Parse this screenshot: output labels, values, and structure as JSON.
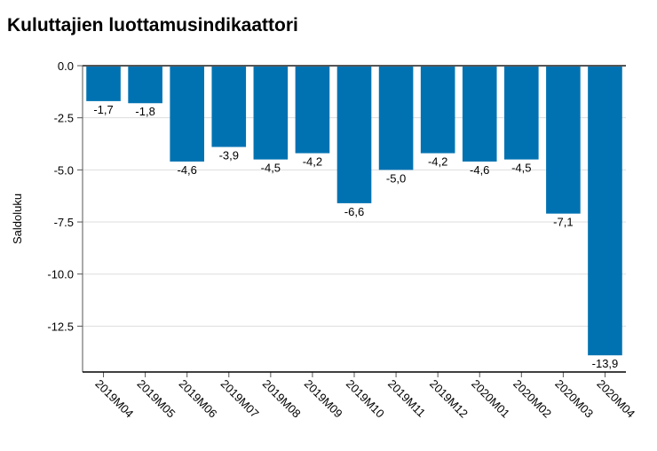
{
  "chart_data": {
    "type": "bar",
    "title": "Kuluttajien luottamusindikaattori",
    "ylabel": "Saldoluku",
    "xlabel": "",
    "categories": [
      "2019M04",
      "2019M05",
      "2019M06",
      "2019M07",
      "2019M08",
      "2019M09",
      "2019M10",
      "2019M11",
      "2019M12",
      "2020M01",
      "2020M02",
      "2020M03",
      "2020M04"
    ],
    "values": [
      -1.7,
      -1.8,
      -4.6,
      -3.9,
      -4.5,
      -4.2,
      -6.6,
      -5.0,
      -4.2,
      -4.6,
      -4.5,
      -7.1,
      -13.9
    ],
    "value_labels": [
      "-1,7",
      "-1,8",
      "-4,6",
      "-3,9",
      "-4,5",
      "-4,2",
      "-6,6",
      "-5,0",
      "-4,2",
      "-4,6",
      "-4,5",
      "-7,1",
      "-13,9"
    ],
    "y_ticks": [
      0,
      -2.5,
      -5,
      -7.5,
      -10,
      -12.5
    ],
    "y_tick_labels": [
      "0.0",
      "-2.5",
      "-5.0",
      "-7.5",
      "-10.0",
      "-12.5"
    ],
    "ylim": [
      -14.7,
      0
    ],
    "grid": true,
    "legend": "none",
    "colors": {
      "bar": "#0072b2",
      "grid": "#dddddd",
      "axis": "#555555"
    }
  }
}
